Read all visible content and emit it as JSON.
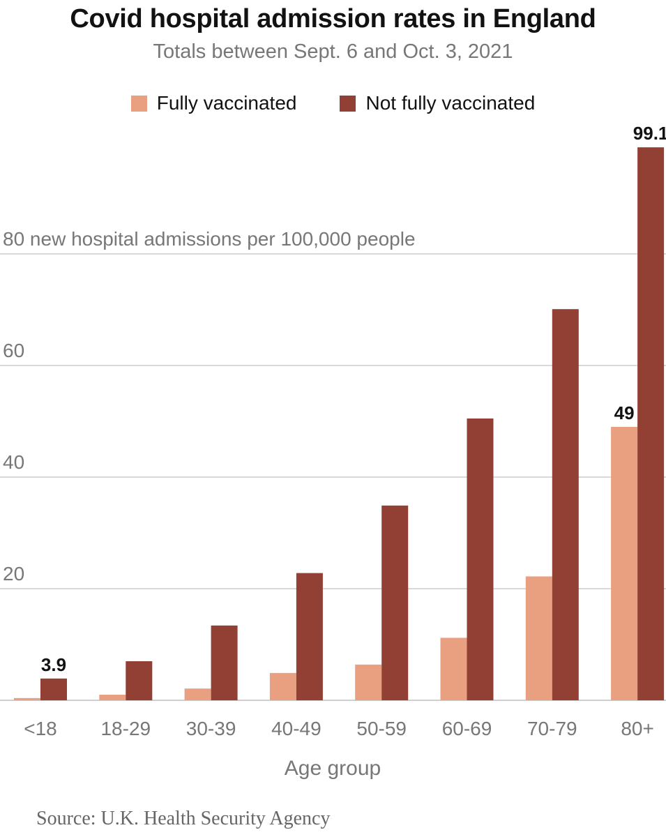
{
  "header": {
    "title": "Covid hospital admission rates in England",
    "subtitle": "Totals between Sept. 6 and Oct. 3, 2021"
  },
  "colors": {
    "fully_vaccinated": "#e8a080",
    "not_fully_vaccinated": "#924034",
    "grid": "#d9d9d9",
    "tick_label": "#777777",
    "data_label": "#121212"
  },
  "source": "Source: U.K. Health Security Agency",
  "chart_data": {
    "type": "bar",
    "title": "Covid hospital admission rates in England",
    "subtitle": "Totals between Sept. 6 and Oct. 3, 2021",
    "xlabel": "Age group",
    "ylabel": "",
    "y_unit_label": "80 new hospital admissions per 100,000 people",
    "categories": [
      "<18",
      "18-29",
      "30-39",
      "40-49",
      "50-59",
      "60-69",
      "70-79",
      "80+"
    ],
    "series": [
      {
        "name": "Fully vaccinated",
        "values": [
          0.4,
          1.0,
          2.1,
          4.9,
          6.4,
          11.2,
          22.2,
          49
        ]
      },
      {
        "name": "Not fully vaccinated",
        "values": [
          3.9,
          7.0,
          13.4,
          22.8,
          34.9,
          50.5,
          70.1,
          99.1
        ]
      }
    ],
    "data_labels": [
      {
        "series": 1,
        "index": 0,
        "text": "3.9"
      },
      {
        "series": 0,
        "index": 7,
        "text": "49"
      },
      {
        "series": 1,
        "index": 7,
        "text": "99.1"
      }
    ],
    "yticks": [
      20,
      40,
      60
    ],
    "ylim": [
      0,
      100
    ],
    "grid": true,
    "legend_position": "top-center"
  }
}
